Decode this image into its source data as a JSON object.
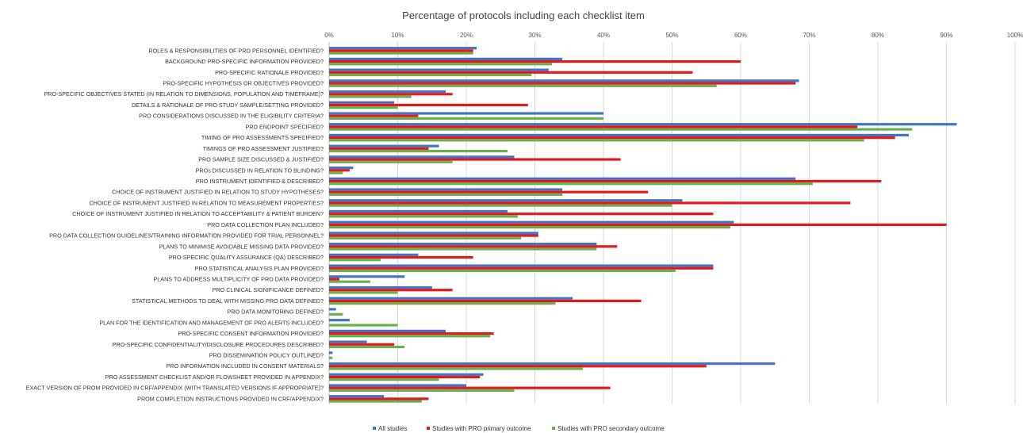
{
  "chart_data": {
    "type": "bar",
    "orientation": "horizontal",
    "title": "Percentage of protocols including each checklist item",
    "xlim": [
      0,
      100
    ],
    "xticks": [
      "0%",
      "10%",
      "20%",
      "30%",
      "40%",
      "50%",
      "60%",
      "70%",
      "80%",
      "90%",
      "100%"
    ],
    "grid": true,
    "legend_position": "bottom",
    "categories": [
      "ROLES & RESPONSIBILITIES OF PRO PERSONNEL IDENTIFIED?",
      "BACKGROUND PRO-SPECIFIC INFORMATION PROVIDED?",
      "PRO-SPECIFIC RATIONALE PROVIDED?",
      "PRO-SPECIFIC HYPOTHESIS OR OBJECTIVES PROVIDED?",
      "PRO-SPECIFIC OBJECTIVES STATED (IN RELATION TO DIMENSIONS, POPULATION AND TIMEFRAME)?",
      "DETAILS & RATIONALE OF PRO STUDY SAMPLE/SETTING PROVIDED?",
      "PRO CONSIDERATIONS DISCUSSED IN THE ELIGIBILITY CRITERIA?",
      "PRO ENDPOINT SPECIFIED?",
      "TIMING OF PRO ASSESSMENTS SPECIFIED?",
      "TIMINGS OF PRO ASSESSMENT JUSTIFIED?",
      "PRO SAMPLE SIZE DISCUSSED & JUSTIFIED?",
      "PROs DISCUSSED IN RELATION TO BLINDING?",
      "PRO INSTRUMENT IDENTIFIED & DESCRIBED?",
      "CHOICE OF INSTRUMENT JUSTIFIED IN RELATION TO STUDY HYPOTHESES?",
      "CHOICE OF INSTRUMENT JUSTIFIED IN RELATION TO MEASUREMENT PROPERTIES?",
      "CHOICE OF INSTRUMENT JUSTIFIED IN RELATION TO ACCEPTABILITY & PATIENT BURDEN?",
      "PRO DATA COLLECTION PLAN INCLUDED?",
      "PRO DATA COLLECTION GUIDELINES/TRAINING INFORMATION PROVIDED FOR TRIAL PERSONNEL?",
      "PLANS TO MINIMISE AVOIDABLE MISSING DATA PROVIDED?",
      "PRO-SPECIFIC QUALITY ASSURANCE (QA) DESCRIBED?",
      "PRO STATISTICAL ANALYSIS PLAN PROVIDED?",
      "PLANS TO ADDRESS MULTIPLICITY OF PRO DATA PROVIDED?",
      "PRO CLINICAL SIGNIFICANCE DEFINED?",
      "STATISTICAL METHODS TO DEAL WITH MISSING PRO DATA DEFINED?",
      "PRO DATA MONITORING DEFINED?",
      "PLAN FOR THE IDENTIFICATION AND MANAGEMENT OF PRO ALERTS INCLUDED?",
      "PRO-SPECIFIC CONSENT INFORMATION PROVIDED?",
      "PRO-SPECIFIC CONFIDENTIALITY/DISCLOSURE PROCEDURES DESCRIBED?",
      "PRO DISSEMINATION POLICY OUTLINED?",
      "PRO INFORMATION INCLUDED IN CONSENT MATERIALS?",
      "PRO ASSESSMENT CHECKLIST AND/OR FLOWSHEET PROVIDED IN APPENDIX?",
      "EXACT VERSION OF PROM PROVIDED IN CRF/APPENDIX (WITH TRANSLATED VERSIONS IF APPROPRIATE)?",
      "PROM COMPLETION INSTRUCTIONS PROVIDED IN CRF/APPENDIX?"
    ],
    "series": [
      {
        "name": "All studies",
        "color": "#4472c4",
        "values": [
          21.5,
          34,
          32,
          68.5,
          17,
          9.5,
          40,
          91.5,
          84.5,
          16,
          27,
          3.5,
          68,
          34,
          51.5,
          26,
          59,
          30.5,
          39,
          13,
          56,
          11,
          15,
          35.5,
          1,
          3,
          17,
          5.5,
          0.5,
          65,
          22.5,
          20,
          8
        ]
      },
      {
        "name": "Studies with PRO primary outcome",
        "color": "#e31a1c",
        "values": [
          21,
          60,
          53,
          68,
          18,
          29,
          13,
          77,
          82.5,
          14.5,
          42.5,
          3,
          80.5,
          46.5,
          76,
          56,
          90,
          30.5,
          42,
          21,
          56,
          1.5,
          18,
          45.5,
          0,
          0,
          24,
          9.5,
          0,
          55,
          22,
          41,
          14.5
        ]
      },
      {
        "name": "Studies with PRO secondary outcome",
        "color": "#6ab04c",
        "values": [
          21,
          32.5,
          29.5,
          56.5,
          12,
          10,
          40,
          85,
          78,
          26,
          18,
          2,
          70.5,
          34,
          50,
          27.5,
          58.5,
          28,
          39,
          7.5,
          50.5,
          6,
          10,
          33,
          2,
          10,
          23.5,
          11,
          0.5,
          37,
          16,
          27,
          13.5
        ]
      }
    ]
  }
}
